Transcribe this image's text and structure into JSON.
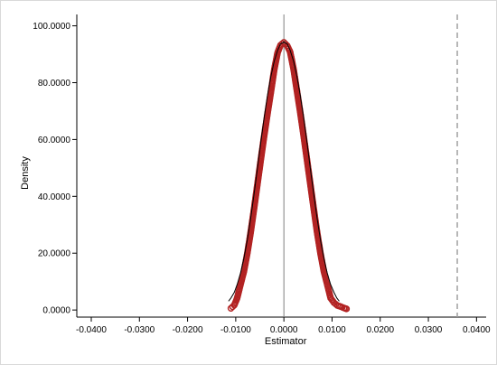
{
  "chart_data": {
    "type": "scatter",
    "title": "",
    "xlabel": "Estimator",
    "ylabel": "Density",
    "xlim": [
      -0.043,
      0.042
    ],
    "ylim": [
      -2.5,
      104
    ],
    "xticks": [
      -0.04,
      -0.03,
      -0.02,
      -0.01,
      0.0,
      0.01,
      0.02,
      0.03,
      0.04
    ],
    "xtick_labels": [
      "-0.0400",
      "-0.0300",
      "-0.0200",
      "-0.0100",
      "0.0000",
      "0.0100",
      "0.0200",
      "0.0300",
      "0.0400"
    ],
    "yticks": [
      0,
      20,
      40,
      60,
      80,
      100
    ],
    "ytick_labels": [
      "0.0000",
      "20.0000",
      "40.0000",
      "60.0000",
      "80.0000",
      "100.0000"
    ],
    "grid": false,
    "reference_lines": [
      {
        "x": 0.0,
        "style": "solid",
        "color": "#808080"
      },
      {
        "x": 0.036,
        "style": "dashed",
        "color": "#a0a0a0"
      }
    ],
    "series": [
      {
        "kind": "points",
        "marker": "hollow-circle",
        "color": "#b22222",
        "x": [
          -0.011,
          -0.0103,
          -0.0097,
          -0.009,
          -0.0083,
          -0.0076,
          -0.0069,
          -0.0062,
          -0.0055,
          -0.0048,
          -0.0041,
          -0.0034,
          -0.0027,
          -0.002,
          -0.0013,
          -0.0007,
          0.0,
          0.0007,
          0.0013,
          0.002,
          0.0027,
          0.0034,
          0.0041,
          0.0048,
          0.0055,
          0.0062,
          0.0069,
          0.0076,
          0.0083,
          0.009,
          0.0097,
          0.0104,
          0.0111,
          0.0118,
          0.0125,
          0.013
        ],
        "y": [
          0.6,
          1.7,
          4.2,
          9.0,
          13.6,
          19.9,
          27.3,
          35.6,
          44.2,
          52.8,
          61.2,
          69.1,
          76.7,
          84.6,
          90.6,
          93.2,
          94.2,
          93.0,
          90.8,
          84.9,
          77.2,
          69.5,
          61.3,
          52.8,
          44.2,
          35.6,
          27.3,
          19.9,
          13.6,
          9.0,
          4.2,
          2.6,
          1.6,
          1.2,
          0.7,
          0.4
        ]
      },
      {
        "kind": "line",
        "color": "#000000",
        "x": [
          -0.0115,
          -0.011,
          -0.0103,
          -0.0097,
          -0.009,
          -0.0083,
          -0.0076,
          -0.0069,
          -0.0062,
          -0.0055,
          -0.0048,
          -0.0041,
          -0.0034,
          -0.0027,
          -0.002,
          -0.0013,
          -0.0007,
          0.0,
          0.0007,
          0.0013,
          0.002,
          0.0027,
          0.0034,
          0.0041,
          0.0048,
          0.0055,
          0.0062,
          0.0069,
          0.0076,
          0.0083,
          0.009,
          0.0097,
          0.0104,
          0.011,
          0.0115
        ],
        "y": [
          3.1,
          4.2,
          6.2,
          9.0,
          13.0,
          18.2,
          24.6,
          32.2,
          40.7,
          49.7,
          58.9,
          67.6,
          75.5,
          82.2,
          87.6,
          91.4,
          93.6,
          94.3,
          93.6,
          91.4,
          87.6,
          82.2,
          75.5,
          67.6,
          58.9,
          49.7,
          40.7,
          32.2,
          24.6,
          18.2,
          13.0,
          9.0,
          6.2,
          4.2,
          3.1
        ]
      }
    ]
  }
}
